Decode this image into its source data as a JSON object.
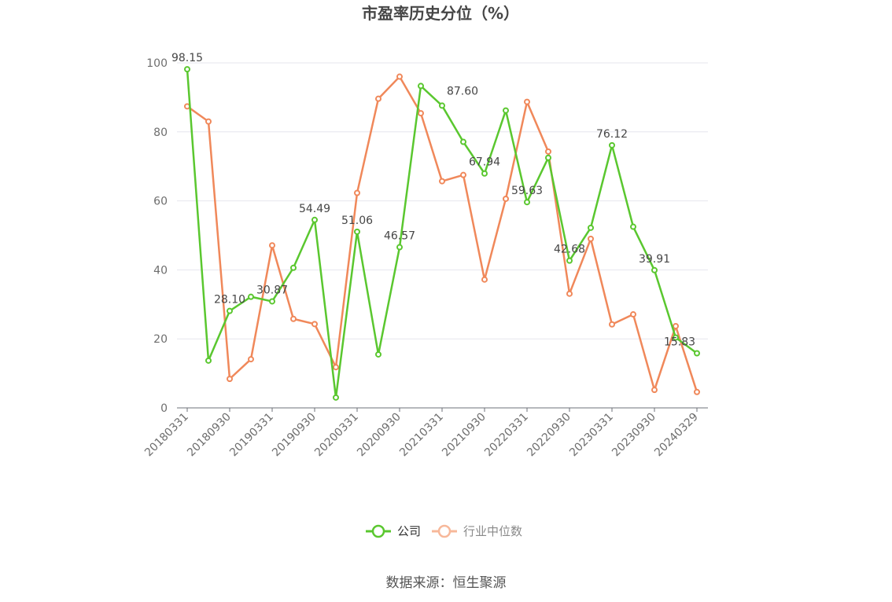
{
  "chart_data": {
    "type": "line",
    "title": "市盈率历史分位（%）",
    "ylim": [
      0,
      100
    ],
    "yticks": [
      "0",
      "20",
      "40",
      "60",
      "80",
      "100"
    ],
    "x": [
      "20180331",
      "20180630",
      "20180930",
      "20181231",
      "20190331",
      "20190630",
      "20190930",
      "20191231",
      "20200331",
      "20200630",
      "20200930",
      "20201231",
      "20210331",
      "20210630",
      "20210930",
      "20211231",
      "20220331",
      "20220630",
      "20220930",
      "20221231",
      "20230331",
      "20230630",
      "20230930",
      "20231231",
      "20240329"
    ],
    "x_tick_labels": [
      "20180331",
      "20180930",
      "20190331",
      "20190930",
      "20200331",
      "20200930",
      "20210331",
      "20210930",
      "20220331",
      "20220930",
      "20230331",
      "20230930",
      "20240329"
    ],
    "series": [
      {
        "name": "公司",
        "color": "#5ac72f",
        "values": [
          98.15,
          13.7,
          28.1,
          32.2,
          30.87,
          40.6,
          54.49,
          3.0,
          51.06,
          15.5,
          46.57,
          93.3,
          87.6,
          77.1,
          67.94,
          86.2,
          59.63,
          72.5,
          42.68,
          52.2,
          76.12,
          52.5,
          39.91,
          20.4,
          15.83
        ],
        "labels": [
          "98.15",
          null,
          "28.10",
          null,
          "30.87",
          null,
          "54.49",
          null,
          "51.06",
          null,
          "46.57",
          null,
          "87.60",
          null,
          "67.94",
          null,
          "59.63",
          null,
          "42.68",
          null,
          "76.12",
          null,
          "39.91",
          null,
          "15.83"
        ]
      },
      {
        "name": "行业中位数",
        "color": "#f0885a",
        "values": [
          87.4,
          83.0,
          8.4,
          14.1,
          47.1,
          25.8,
          24.3,
          11.8,
          62.3,
          89.6,
          96.0,
          85.4,
          65.7,
          67.5,
          37.2,
          60.6,
          88.7,
          74.3,
          33.1,
          49.0,
          24.2,
          27.1,
          5.2,
          23.7,
          4.6
        ]
      }
    ],
    "legend_position": "bottom-center",
    "grid": true
  },
  "source_text": "数据来源：恒生聚源"
}
